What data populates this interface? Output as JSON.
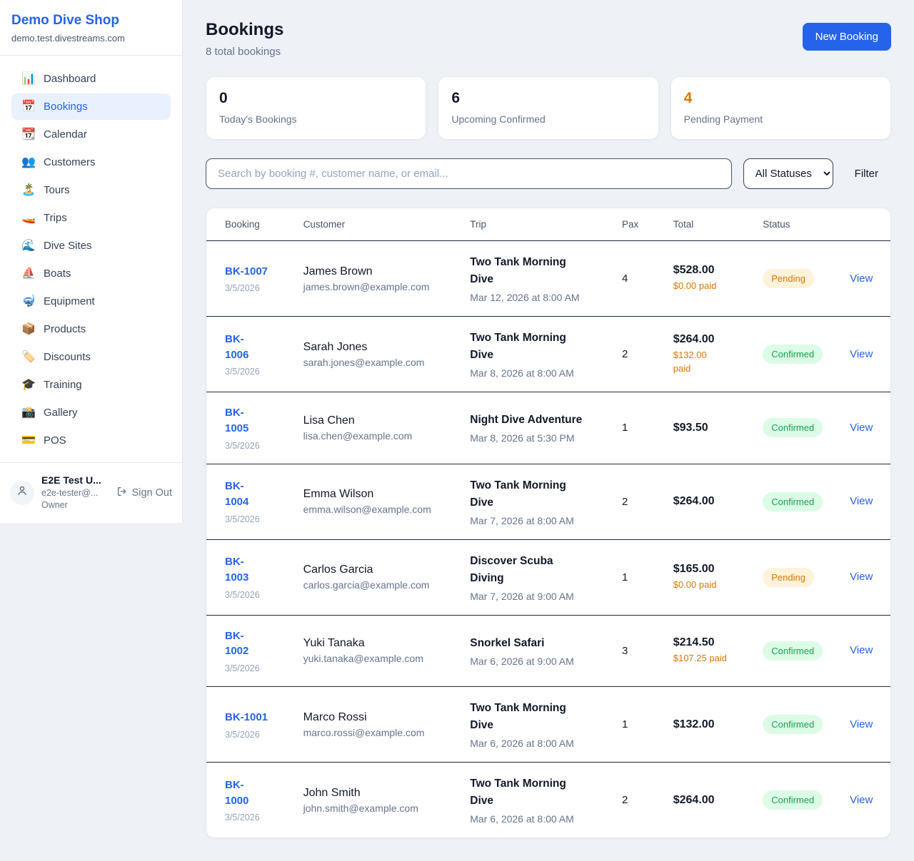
{
  "colors": {
    "accent_blue": "#2563eb",
    "pending_orange": "#d97706",
    "confirmed_green": "#16a34a",
    "pending_badge_bg": "#fcf3da",
    "confirmed_badge_bg": "#dcfce7"
  },
  "sidebar": {
    "shop_name": "Demo Dive Shop",
    "domain": "demo.test.divestreams.com",
    "items": [
      {
        "label": "Dashboard",
        "icon": "📊",
        "icon_name": "bar-chart-icon",
        "active": false
      },
      {
        "label": "Bookings",
        "icon": "📅",
        "icon_name": "calendar-icon",
        "active": true
      },
      {
        "label": "Calendar",
        "icon": "📆",
        "icon_name": "tear-calendar-icon",
        "active": false
      },
      {
        "label": "Customers",
        "icon": "👥",
        "icon_name": "people-icon",
        "active": false
      },
      {
        "label": "Tours",
        "icon": "🏝️",
        "icon_name": "island-icon",
        "active": false
      },
      {
        "label": "Trips",
        "icon": "🚤",
        "icon_name": "speedboat-icon",
        "active": false
      },
      {
        "label": "Dive Sites",
        "icon": "🌊",
        "icon_name": "wave-icon",
        "active": false
      },
      {
        "label": "Boats",
        "icon": "⛵",
        "icon_name": "sailboat-icon",
        "active": false
      },
      {
        "label": "Equipment",
        "icon": "🤿",
        "icon_name": "dive-mask-icon",
        "active": false
      },
      {
        "label": "Products",
        "icon": "📦",
        "icon_name": "package-icon",
        "active": false
      },
      {
        "label": "Discounts",
        "icon": "🏷️",
        "icon_name": "tag-icon",
        "active": false
      },
      {
        "label": "Training",
        "icon": "🎓",
        "icon_name": "graduation-cap-icon",
        "active": false
      },
      {
        "label": "Gallery",
        "icon": "📸",
        "icon_name": "camera-icon",
        "active": false
      },
      {
        "label": "POS",
        "icon": "💳",
        "icon_name": "credit-card-icon",
        "active": false
      }
    ],
    "user": {
      "name": "E2E Test U...",
      "email": "e2e-tester@...",
      "role": "Owner",
      "sign_out_label": "Sign Out"
    }
  },
  "header": {
    "title": "Bookings",
    "subtitle": "8 total bookings",
    "new_booking_label": "New Booking"
  },
  "stats": [
    {
      "value": "0",
      "label": "Today's Bookings",
      "highlight": false
    },
    {
      "value": "6",
      "label": "Upcoming Confirmed",
      "highlight": false
    },
    {
      "value": "4",
      "label": "Pending Payment",
      "highlight": true
    }
  ],
  "controls": {
    "search_placeholder": "Search by booking #, customer name, or email...",
    "status_filter_value": "All Statuses",
    "filter_label": "Filter"
  },
  "table": {
    "columns": [
      "Booking",
      "Customer",
      "Trip",
      "Pax",
      "Total",
      "Status"
    ],
    "view_label": "View",
    "rows": [
      {
        "number_lines": [
          "BK-1007"
        ],
        "date": "3/5/2026",
        "customer_name": "James Brown",
        "customer_email": "james.brown@example.com",
        "trip_lines": [
          "Two Tank Morning",
          "Dive"
        ],
        "trip_datetime": "Mar 12, 2026 at 8:00 AM",
        "pax": "4",
        "total": "$528.00",
        "paid_lines": [
          "$0.00 paid"
        ],
        "status": "Pending"
      },
      {
        "number_lines": [
          "BK-",
          "1006"
        ],
        "date": "3/5/2026",
        "customer_name": "Sarah Jones",
        "customer_email": "sarah.jones@example.com",
        "trip_lines": [
          "Two Tank Morning",
          "Dive"
        ],
        "trip_datetime": "Mar 8, 2026 at 8:00 AM",
        "pax": "2",
        "total": "$264.00",
        "paid_lines": [
          "$132.00",
          "paid"
        ],
        "status": "Confirmed"
      },
      {
        "number_lines": [
          "BK-",
          "1005"
        ],
        "date": "3/5/2026",
        "customer_name": "Lisa Chen",
        "customer_email": "lisa.chen@example.com",
        "trip_lines": [
          "Night Dive Adventure"
        ],
        "trip_datetime": "Mar 8, 2026 at 5:30 PM",
        "pax": "1",
        "total": "$93.50",
        "paid_lines": [],
        "status": "Confirmed"
      },
      {
        "number_lines": [
          "BK-",
          "1004"
        ],
        "date": "3/5/2026",
        "customer_name": "Emma Wilson",
        "customer_email": "emma.wilson@example.com",
        "trip_lines": [
          "Two Tank Morning",
          "Dive"
        ],
        "trip_datetime": "Mar 7, 2026 at 8:00 AM",
        "pax": "2",
        "total": "$264.00",
        "paid_lines": [],
        "status": "Confirmed"
      },
      {
        "number_lines": [
          "BK-",
          "1003"
        ],
        "date": "3/5/2026",
        "customer_name": "Carlos Garcia",
        "customer_email": "carlos.garcia@example.com",
        "trip_lines": [
          "Discover Scuba",
          "Diving"
        ],
        "trip_datetime": "Mar 7, 2026 at 9:00 AM",
        "pax": "1",
        "total": "$165.00",
        "paid_lines": [
          "$0.00 paid"
        ],
        "status": "Pending"
      },
      {
        "number_lines": [
          "BK-",
          "1002"
        ],
        "date": "3/5/2026",
        "customer_name": "Yuki Tanaka",
        "customer_email": "yuki.tanaka@example.com",
        "trip_lines": [
          "Snorkel Safari"
        ],
        "trip_datetime": "Mar 6, 2026 at 9:00 AM",
        "pax": "3",
        "total": "$214.50",
        "paid_lines": [
          "$107.25 paid"
        ],
        "status": "Confirmed"
      },
      {
        "number_lines": [
          "BK-1001"
        ],
        "date": "3/5/2026",
        "customer_name": "Marco Rossi",
        "customer_email": "marco.rossi@example.com",
        "trip_lines": [
          "Two Tank Morning",
          "Dive"
        ],
        "trip_datetime": "Mar 6, 2026 at 8:00 AM",
        "pax": "1",
        "total": "$132.00",
        "paid_lines": [],
        "status": "Confirmed"
      },
      {
        "number_lines": [
          "BK-",
          "1000"
        ],
        "date": "3/5/2026",
        "customer_name": "John Smith",
        "customer_email": "john.smith@example.com",
        "trip_lines": [
          "Two Tank Morning",
          "Dive"
        ],
        "trip_datetime": "Mar 6, 2026 at 8:00 AM",
        "pax": "2",
        "total": "$264.00",
        "paid_lines": [],
        "status": "Confirmed"
      }
    ]
  }
}
